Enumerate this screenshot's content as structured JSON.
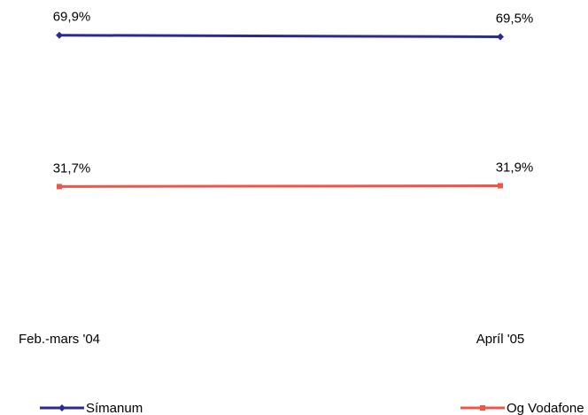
{
  "chart_data": {
    "type": "line",
    "categories": [
      "Feb.-mars '04",
      "Apríl '05"
    ],
    "series": [
      {
        "name": "Símanum",
        "color": "#2b2b8f",
        "values": [
          69.9,
          69.5
        ],
        "value_labels": [
          "69,9%",
          "69,5%"
        ]
      },
      {
        "name": "Og Vodafone",
        "color": "#f0554a",
        "values": [
          31.7,
          31.9
        ],
        "value_labels": [
          "31,7%",
          "31,9%"
        ]
      }
    ],
    "ylim": [
      0,
      77
    ]
  }
}
